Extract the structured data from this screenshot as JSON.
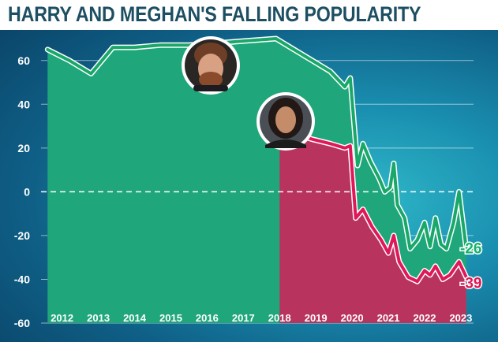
{
  "title": "HARRY AND MEGHAN'S FALLING POPULARITY",
  "colors": {
    "harry": "#1fa67a",
    "harry_line": "#1aa86a",
    "meghan": "#b8335e",
    "meghan_line": "#e0185a",
    "harry_area": "#1fa67a",
    "meghan_area": "#b8335e",
    "harry_label": "#12b36a",
    "meghan_label": "#e01552"
  },
  "chart_data": {
    "type": "line",
    "title": "HARRY AND MEGHAN'S FALLING POPULARITY",
    "xlabel": "",
    "ylabel": "",
    "xlim": [
      2011.55,
      2023.35
    ],
    "ylim": [
      -60,
      70
    ],
    "y_ticks": [
      60,
      40,
      20,
      0,
      -20,
      -40,
      -60
    ],
    "y_tick_labels": [
      "60",
      "40",
      "20",
      "0",
      "-20",
      "-40",
      "-60"
    ],
    "x_ticks": [
      "2012",
      "2013",
      "2014",
      "2015",
      "2016",
      "2017",
      "2018",
      "2019",
      "2020",
      "2021",
      "2022",
      "2023"
    ],
    "grid": true,
    "zero_line": "dashed",
    "series": [
      {
        "key": "harry",
        "points": [
          [
            2011.6,
            65
          ],
          [
            2012.2,
            60
          ],
          [
            2012.8,
            54
          ],
          [
            2013.4,
            66
          ],
          [
            2014.0,
            66
          ],
          [
            2014.7,
            67
          ],
          [
            2015.5,
            67
          ],
          [
            2016.3,
            68
          ],
          [
            2017.1,
            69
          ],
          [
            2017.9,
            70
          ],
          [
            2018.4,
            65
          ],
          [
            2018.9,
            60
          ],
          [
            2019.4,
            55
          ],
          [
            2019.8,
            48
          ],
          [
            2019.95,
            52
          ],
          [
            2020.15,
            12
          ],
          [
            2020.3,
            22
          ],
          [
            2020.5,
            14
          ],
          [
            2020.75,
            6
          ],
          [
            2020.9,
            0
          ],
          [
            2021.05,
            2
          ],
          [
            2021.15,
            13
          ],
          [
            2021.25,
            -6
          ],
          [
            2021.45,
            -12
          ],
          [
            2021.6,
            -26
          ],
          [
            2021.8,
            -22
          ],
          [
            2022.0,
            -14
          ],
          [
            2022.15,
            -25
          ],
          [
            2022.3,
            -12
          ],
          [
            2022.45,
            -24
          ],
          [
            2022.6,
            -26
          ],
          [
            2022.8,
            -14
          ],
          [
            2022.95,
            0
          ],
          [
            2023.15,
            -26
          ]
        ],
        "end_label": "-26"
      },
      {
        "key": "meghan",
        "points": [
          [
            2018.0,
            27
          ],
          [
            2018.5,
            26
          ],
          [
            2018.9,
            24
          ],
          [
            2019.4,
            22
          ],
          [
            2019.8,
            20
          ],
          [
            2019.95,
            21
          ],
          [
            2020.1,
            -12
          ],
          [
            2020.3,
            -8
          ],
          [
            2020.55,
            -16
          ],
          [
            2020.8,
            -22
          ],
          [
            2021.0,
            -28
          ],
          [
            2021.15,
            -20
          ],
          [
            2021.3,
            -32
          ],
          [
            2021.55,
            -39
          ],
          [
            2021.8,
            -41
          ],
          [
            2022.0,
            -36
          ],
          [
            2022.15,
            -38
          ],
          [
            2022.3,
            -34
          ],
          [
            2022.5,
            -40
          ],
          [
            2022.7,
            -38
          ],
          [
            2022.95,
            -32
          ],
          [
            2023.15,
            -39
          ]
        ],
        "end_label": "-39"
      }
    ]
  }
}
